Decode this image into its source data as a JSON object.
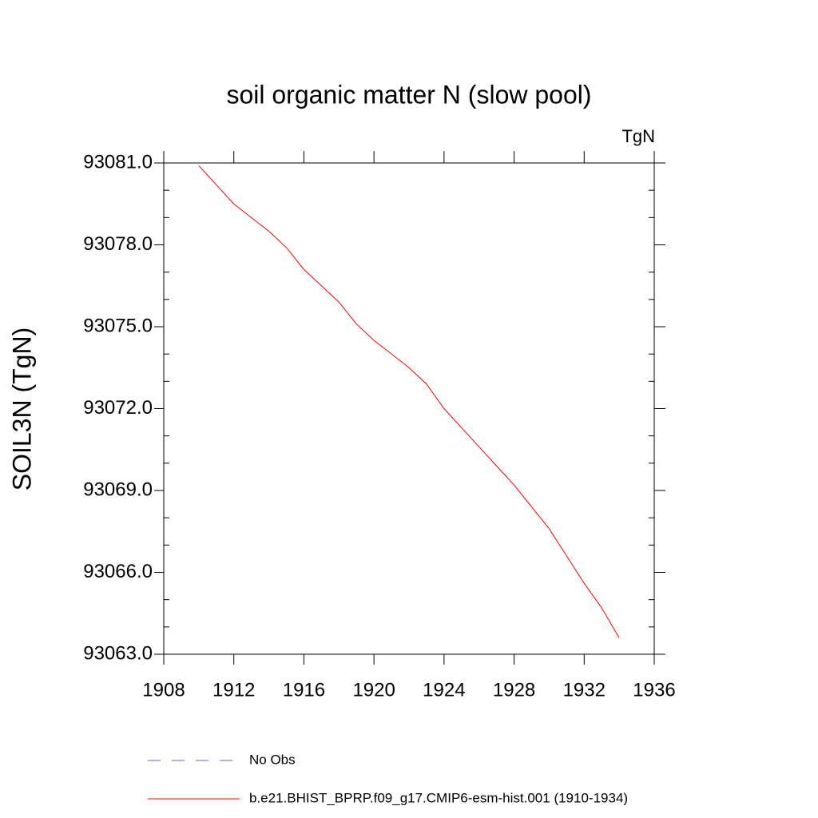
{
  "chart_data": {
    "type": "line",
    "title": "soil organic matter N (slow pool)",
    "units": "TgN",
    "ylabel": "SOIL3N  (TgN)",
    "x": [
      1910,
      1911,
      1912,
      1913,
      1914,
      1915,
      1916,
      1917,
      1918,
      1919,
      1920,
      1921,
      1922,
      1923,
      1924,
      1925,
      1926,
      1927,
      1928,
      1929,
      1930,
      1931,
      1932,
      1933,
      1934
    ],
    "series": [
      {
        "name": "b.e21.BHIST_BPRP.f09_g17.CMIP6-esm-hist.001 (1910-1934)",
        "color": "#ff0000",
        "values": [
          93080.9,
          93080.2,
          93079.5,
          93079.0,
          93078.5,
          93077.9,
          93077.1,
          93076.5,
          93075.9,
          93075.1,
          93074.5,
          93074.0,
          93073.5,
          93072.9,
          93072.0,
          93071.3,
          93070.6,
          93069.9,
          93069.2,
          93068.4,
          93067.6,
          93066.6,
          93065.6,
          93064.7,
          93063.6
        ]
      }
    ],
    "legend_extra": [
      {
        "name": "No Obs",
        "color": "#6666bb",
        "style": "dashed"
      }
    ],
    "xlim": [
      1908,
      1936
    ],
    "xticks": [
      1908,
      1912,
      1916,
      1920,
      1924,
      1928,
      1932,
      1936
    ],
    "ylim": [
      93063,
      93081
    ],
    "yticks": [
      {
        "value": 93063,
        "label": "93063.0"
      },
      {
        "value": 93066,
        "label": "93066.0"
      },
      {
        "value": 93069,
        "label": "93069.0"
      },
      {
        "value": 93072,
        "label": "93072.0"
      },
      {
        "value": 93075,
        "label": "93075.0"
      },
      {
        "value": 93078,
        "label": "93078.0"
      },
      {
        "value": 93081,
        "label": "93081.0"
      }
    ]
  }
}
